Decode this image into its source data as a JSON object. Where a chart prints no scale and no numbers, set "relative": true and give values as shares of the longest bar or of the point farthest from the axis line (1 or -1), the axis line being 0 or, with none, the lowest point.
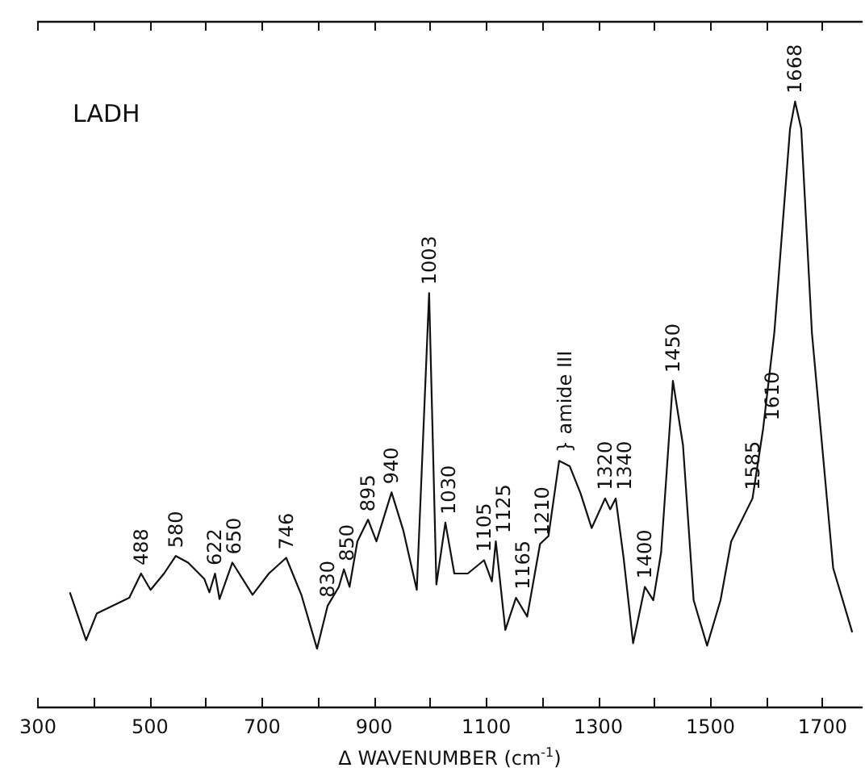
{
  "chart_data": {
    "type": "line",
    "title": "LADH",
    "xlabel": "Δ WAVENUMBER (cm$^{-1}$)",
    "relative": true,
    "color": "#111111",
    "xlim": [
      300,
      1770
    ],
    "xticks": [
      300,
      {
        "value": 400,
        "label": null
      },
      500,
      {
        "value": 600,
        "label": null
      },
      700,
      {
        "value": 800,
        "label": null
      },
      900,
      {
        "value": 1000,
        "label": null
      },
      1100,
      {
        "value": 1200,
        "label": null
      },
      1300,
      {
        "value": 1400,
        "label": null
      },
      1500,
      {
        "value": 1600,
        "label": null
      },
      1700
    ],
    "x": [
      357,
      386,
      405,
      443,
      463,
      484,
      501,
      525,
      546,
      568,
      597,
      606,
      616,
      624,
      647,
      683,
      712,
      743,
      770,
      798,
      817,
      837,
      846,
      856,
      870,
      889,
      904,
      931,
      952,
      976,
      998,
      1011,
      1027,
      1043,
      1067,
      1096,
      1110,
      1117,
      1134,
      1153,
      1173,
      1196,
      1211,
      1230,
      1249,
      1268,
      1288,
      1312,
      1321,
      1331,
      1345,
      1362,
      1383,
      1398,
      1412,
      1433,
      1451,
      1470,
      1494,
      1518,
      1537,
      1575,
      1594,
      1614,
      1642,
      1651,
      1662,
      1681,
      1719,
      1753
    ],
    "values": [
      0.19,
      0.111,
      0.155,
      0.172,
      0.181,
      0.221,
      0.194,
      0.221,
      0.25,
      0.239,
      0.212,
      0.19,
      0.221,
      0.179,
      0.239,
      0.186,
      0.221,
      0.247,
      0.186,
      0.097,
      0.168,
      0.199,
      0.228,
      0.199,
      0.274,
      0.31,
      0.274,
      0.355,
      0.292,
      0.194,
      0.684,
      0.203,
      0.305,
      0.221,
      0.221,
      0.243,
      0.208,
      0.274,
      0.128,
      0.181,
      0.15,
      0.27,
      0.283,
      0.407,
      0.398,
      0.354,
      0.296,
      0.345,
      0.327,
      0.345,
      0.247,
      0.106,
      0.199,
      0.177,
      0.256,
      0.539,
      0.433,
      0.177,
      0.102,
      0.177,
      0.274,
      0.345,
      0.46,
      0.619,
      0.955,
      1,
      0.955,
      0.619,
      0.23,
      0.124
    ],
    "annotations": [
      {
        "text": "488",
        "x": 484,
        "y": 0.221
      },
      {
        "text": "580",
        "x": 546,
        "y": 0.25
      },
      {
        "text": "622",
        "x": 616,
        "y": 0.221
      },
      {
        "text": "650",
        "x": 647,
        "y": 0.239
      },
      {
        "text": "746",
        "x": 743,
        "y": 0.247
      },
      {
        "text": "830",
        "x": 817,
        "y": 0.168
      },
      {
        "text": "850",
        "x": 846,
        "y": 0.228
      },
      {
        "text": "895",
        "x": 889,
        "y": 0.31
      },
      {
        "text": "940",
        "x": 931,
        "y": 0.355
      },
      {
        "text": "1003",
        "x": 998,
        "y": 0.684
      },
      {
        "text": "1030",
        "x": 1027,
        "y": 0.305
      },
      {
        "text": "1105",
        "x": 1096,
        "y": 0.243
      },
      {
        "text": "1125",
        "x": 1117,
        "y": 0.274
      },
      {
        "text": "1165",
        "x": 1153,
        "y": 0.181
      },
      {
        "text": "1210",
        "x": 1196,
        "y": 0.27
      },
      {
        "text": "} amide III",
        "x": 1240,
        "y": 0.407
      },
      {
        "text": "1320",
        "x": 1312,
        "y": 0.345
      },
      {
        "text": "1340",
        "x": 1331,
        "y": 0.345
      },
      {
        "text": "1400",
        "x": 1383,
        "y": 0.199
      },
      {
        "text": "1450",
        "x": 1433,
        "y": 0.539
      },
      {
        "text": "1585",
        "x": 1575,
        "y": 0.345
      },
      {
        "text": "1610",
        "x": 1594,
        "y": 0.46
      },
      {
        "text": "1668",
        "x": 1651,
        "y": 1
      }
    ]
  }
}
